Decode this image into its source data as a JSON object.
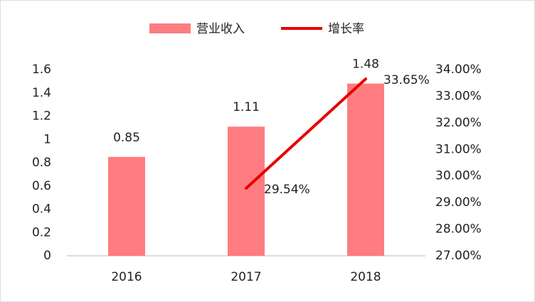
{
  "chart_data": {
    "type": "combo",
    "categories": [
      "2016",
      "2017",
      "2018"
    ],
    "series": [
      {
        "name": "营业收入",
        "type": "bar",
        "color": "#ff7c80",
        "values": [
          0.85,
          1.11,
          1.48
        ]
      },
      {
        "name": "增长率",
        "type": "line",
        "axis": "y2",
        "color": "#e60000",
        "values": [
          null,
          29.54,
          33.65
        ],
        "value_labels": [
          null,
          "29.54%",
          "33.65%"
        ]
      }
    ],
    "ylim": [
      0,
      1.6
    ],
    "yticks": [
      0,
      0.2,
      0.4,
      0.6,
      0.8,
      1,
      1.2,
      1.4,
      1.6
    ],
    "y2lim": [
      27,
      34
    ],
    "y2ticks": [
      {
        "value": 27,
        "label": "27.00%"
      },
      {
        "value": 28,
        "label": "28.00%"
      },
      {
        "value": 29,
        "label": "29.00%"
      },
      {
        "value": 30,
        "label": "30.00%"
      },
      {
        "value": 31,
        "label": "31.00%"
      },
      {
        "value": 32,
        "label": "32.00%"
      },
      {
        "value": 33,
        "label": "33.00%"
      },
      {
        "value": 34,
        "label": "34.00%"
      }
    ],
    "grid": false,
    "legend": "top"
  }
}
